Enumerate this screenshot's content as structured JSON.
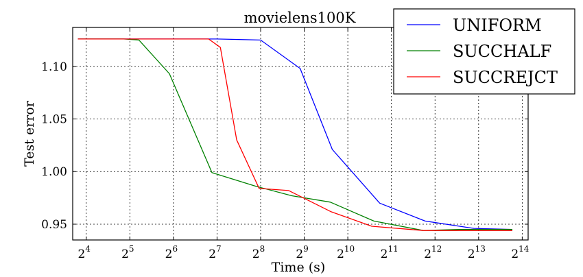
{
  "chart_data": {
    "type": "line",
    "title": "movielens100K",
    "xlabel": "Time (s)",
    "ylabel": "Test error",
    "xscale": "log2",
    "xlim": [
      12.9,
      18000
    ],
    "ylim": [
      0.935,
      1.137
    ],
    "x_ticks": [
      16,
      32,
      64,
      128,
      256,
      512,
      1024,
      2048,
      4096,
      8192,
      16384
    ],
    "x_tick_base": "2",
    "x_tick_exponents": [
      "4",
      "5",
      "6",
      "7",
      "8",
      "9",
      "10",
      "11",
      "12",
      "13",
      "14"
    ],
    "y_ticks": [
      0.95,
      1.0,
      1.05,
      1.1
    ],
    "y_tick_labels": [
      "0.95",
      "1.00",
      "1.05",
      "1.10"
    ],
    "grid": true,
    "legend_position": "top-right",
    "series": [
      {
        "name": "UNIFORM",
        "color": "#0000ff",
        "x": [
          14,
          64,
          128,
          256,
          480,
          800,
          1700,
          3500,
          7600,
          14000
        ],
        "y": [
          1.126,
          1.126,
          1.126,
          1.125,
          1.098,
          1.021,
          0.97,
          0.953,
          0.946,
          0.945
        ]
      },
      {
        "name": "SUCCHALF",
        "color": "#008000",
        "x": [
          14,
          29,
          37,
          60,
          118,
          238,
          420,
          775,
          1550,
          3400,
          6000,
          14000
        ],
        "y": [
          1.126,
          1.126,
          1.125,
          1.093,
          0.999,
          0.986,
          0.977,
          0.971,
          0.953,
          0.944,
          0.945,
          0.945
        ]
      },
      {
        "name": "SUCCREJCT",
        "color": "#ff0000",
        "x": [
          14,
          78,
          112,
          135,
          175,
          250,
          400,
          780,
          1500,
          3400,
          6000,
          14000
        ],
        "y": [
          1.126,
          1.126,
          1.126,
          1.118,
          1.03,
          0.984,
          0.982,
          0.962,
          0.948,
          0.944,
          0.944,
          0.944
        ]
      }
    ]
  }
}
